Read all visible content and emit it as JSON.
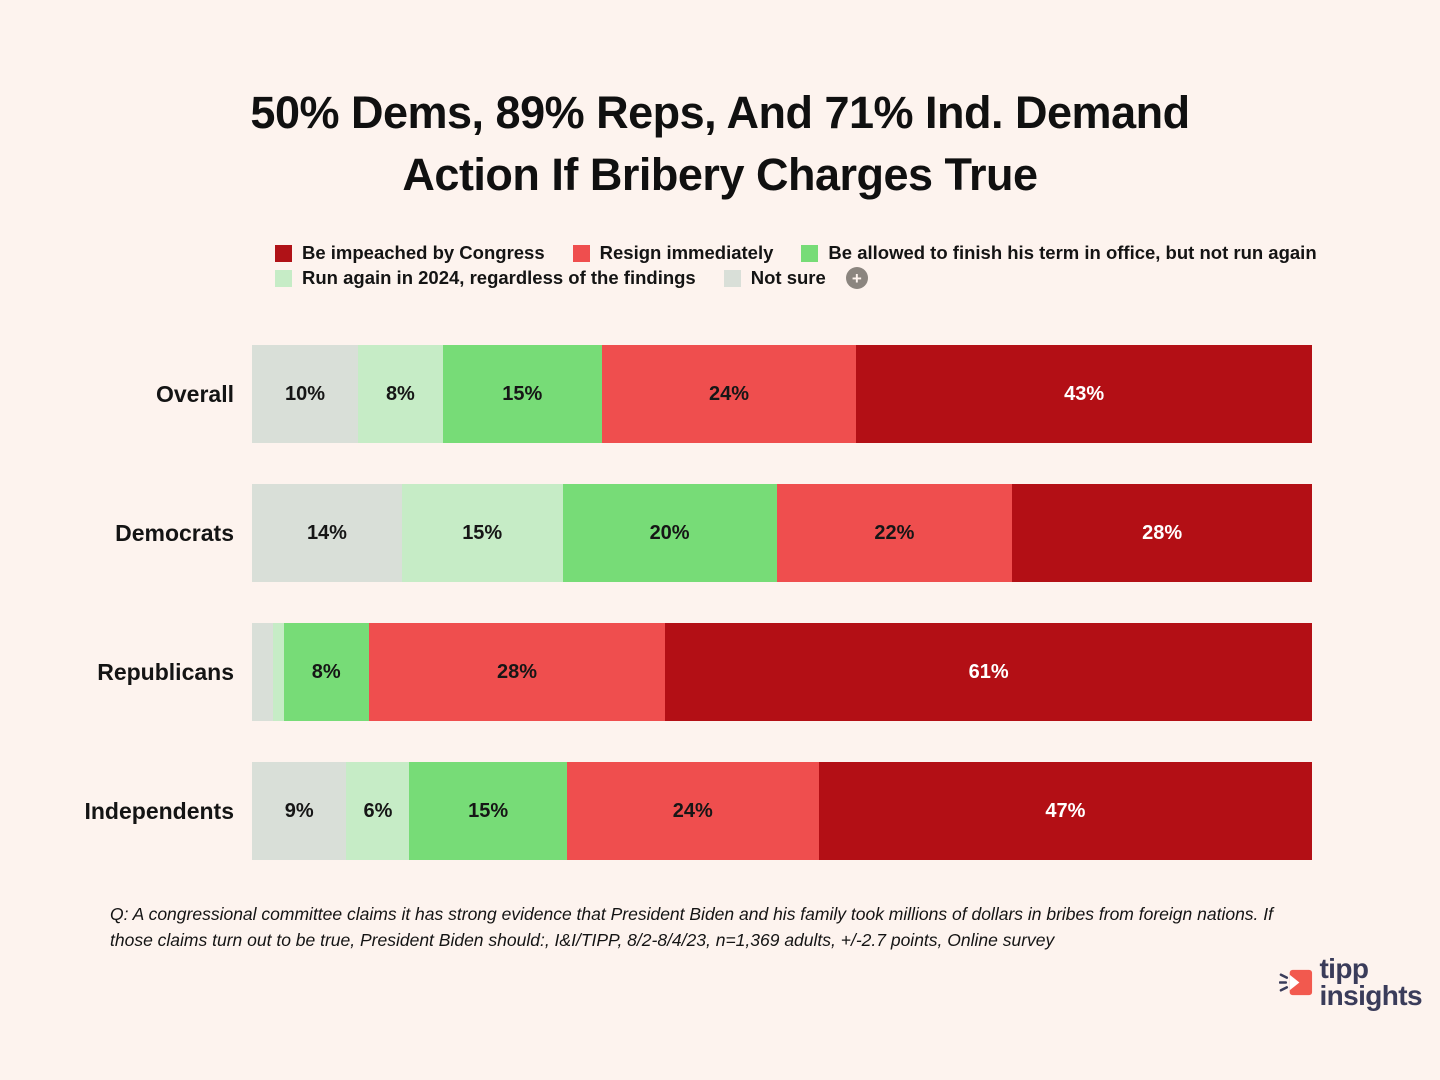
{
  "page": {
    "background": "#fdf3ee"
  },
  "title": {
    "line1": "50% Dems, 89% Reps, And 71% Ind. Demand",
    "line2": "Action If Bribery Charges True"
  },
  "legend": {
    "row1": [
      {
        "key": "impeach",
        "label": "Be impeached by Congress",
        "color": "#b01217"
      },
      {
        "key": "resign",
        "label": "Resign immediately",
        "color": "#ef4e4e"
      },
      {
        "key": "finish_term",
        "label": "Be allowed to finish his term in office, but not run again",
        "color": "#77dc77"
      }
    ],
    "row2": [
      {
        "key": "run_again",
        "label": "Run again in 2024, regardless of the findings",
        "color": "#c6ecc6"
      },
      {
        "key": "not_sure",
        "label": "Not sure",
        "color": "#d9dfd8"
      }
    ],
    "plus_icon": {
      "symbol": "+",
      "circle_color": "#8b857f"
    }
  },
  "chart_data": {
    "type": "bar",
    "orientation": "horizontal",
    "stacked": true,
    "unit": "%",
    "categories": [
      "Overall",
      "Democrats",
      "Republicans",
      "Independents"
    ],
    "series": [
      {
        "name": "Not sure",
        "color": "#d9dfd8",
        "text_color": "#161616",
        "values": [
          10,
          14,
          2,
          9
        ]
      },
      {
        "name": "Run again in 2024, regardless of the findings",
        "color": "#c6ecc6",
        "text_color": "#161616",
        "values": [
          8,
          15,
          1,
          6
        ]
      },
      {
        "name": "Be allowed to finish his term in office, but not run again",
        "color": "#77dc77",
        "text_color": "#161616",
        "values": [
          15,
          20,
          8,
          15
        ]
      },
      {
        "name": "Resign immediately",
        "color": "#ef4e4e",
        "text_color": "#161616",
        "values": [
          24,
          22,
          28,
          24
        ]
      },
      {
        "name": "Be impeached by Congress",
        "color": "#b30f15",
        "text_color": "#ffffff",
        "values": [
          43,
          28,
          61,
          47
        ]
      }
    ],
    "hidden_labels": [
      [
        0,
        2
      ],
      [
        1,
        2
      ]
    ],
    "legend_position": "top",
    "grid": false,
    "xlim": [
      0,
      100
    ]
  },
  "footnote": "Q: A congressional committee claims it has strong evidence that President Biden and his family took millions of dollars in bribes from foreign nations. If those claims turn out to be true, President Biden should:, I&I/TIPP, 8/2-8/4/23, n=1,369 adults, +/-2.7 points,  Online survey",
  "logo": {
    "word1": "tipp",
    "word2": "insights",
    "text_color": "#3a3c5a",
    "icon_color": "#f2594e"
  }
}
